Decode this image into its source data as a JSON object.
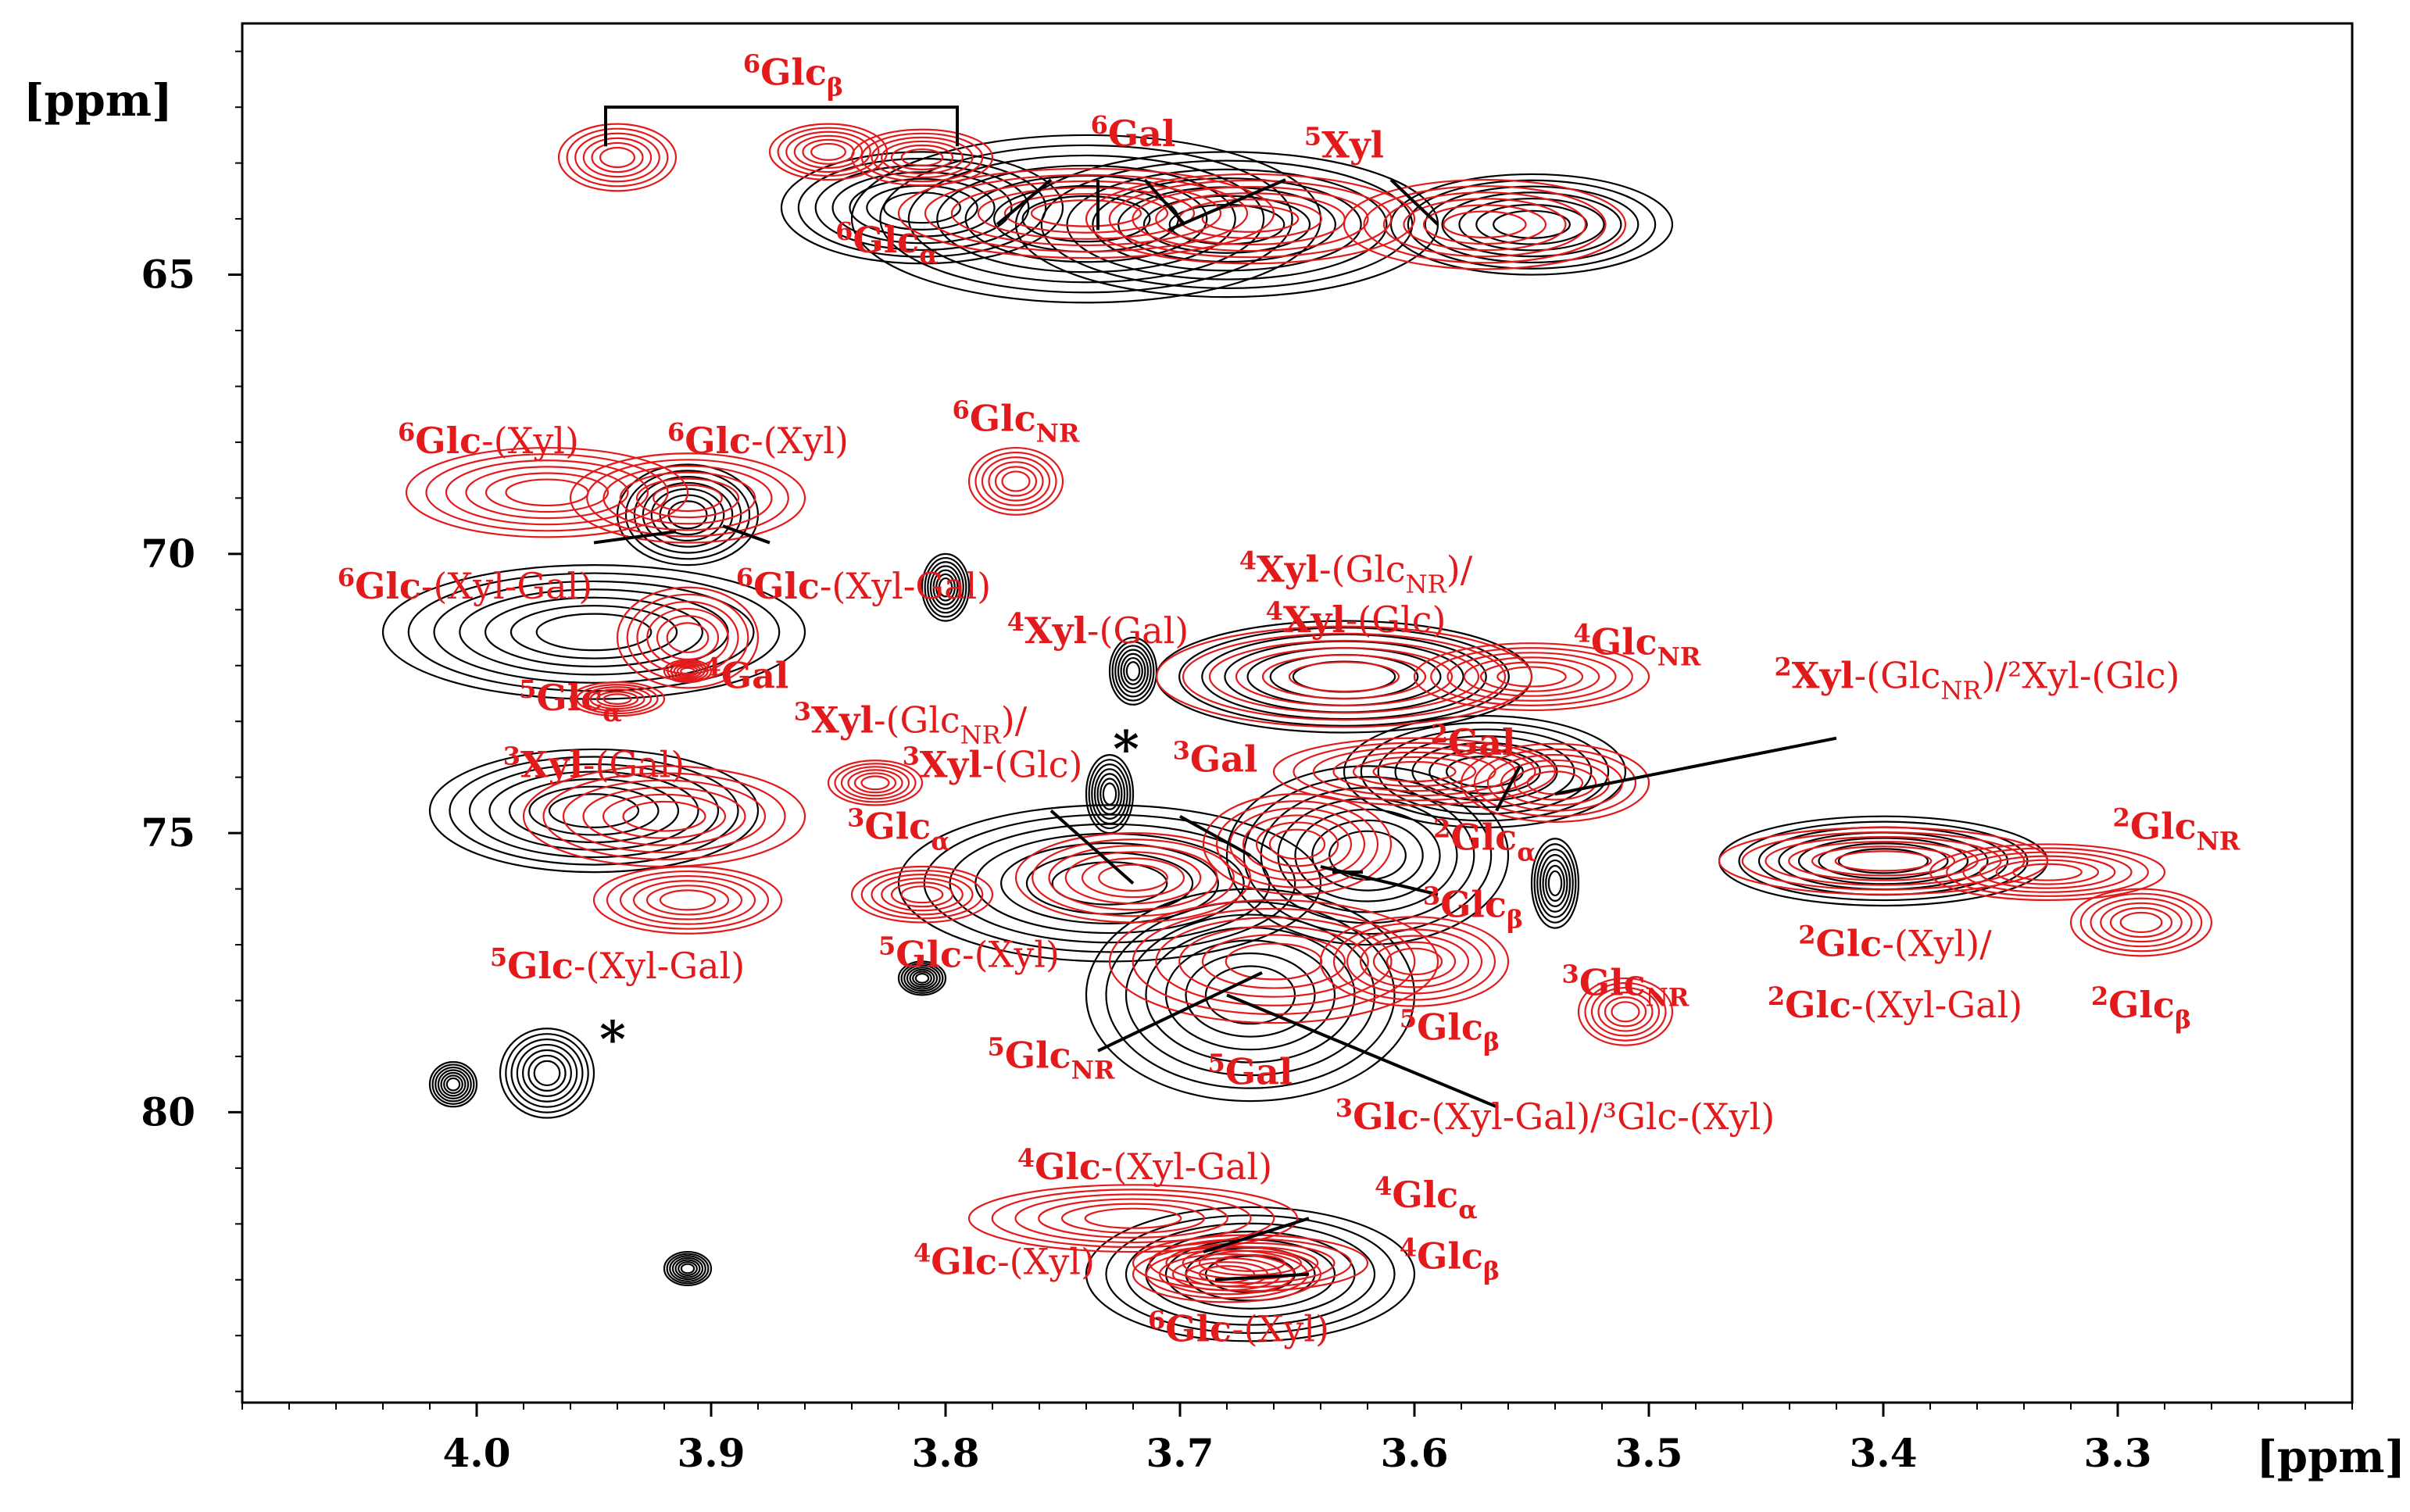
{
  "chart_data": {
    "type": "nmr-2d-hsqc-overlay",
    "x_unit": "[ppm]",
    "y_unit": "[ppm]",
    "xlim": [
      4.1,
      3.2
    ],
    "ylim": [
      60.5,
      85.2
    ],
    "x_ticks": [
      4.0,
      3.9,
      3.8,
      3.7,
      3.6,
      3.5,
      3.4,
      3.3
    ],
    "x_tick_labels": [
      "4.0",
      "3.9",
      "3.8",
      "3.7",
      "3.6",
      "3.5",
      "3.4",
      "3.3"
    ],
    "y_ticks": [
      65,
      70,
      75,
      80
    ],
    "y_tick_labels": [
      "65",
      "70",
      "75",
      "80"
    ],
    "colors": {
      "black_series": "#000000",
      "red_series": "#e31a1c"
    },
    "series_black": [
      {
        "x": 3.81,
        "y": 63.8,
        "w": 0.06,
        "h": 1.0
      },
      {
        "x": 3.74,
        "y": 64.0,
        "w": 0.1,
        "h": 1.5
      },
      {
        "x": 3.68,
        "y": 64.1,
        "w": 0.09,
        "h": 1.3
      },
      {
        "x": 3.55,
        "y": 64.1,
        "w": 0.06,
        "h": 0.9
      },
      {
        "x": 3.95,
        "y": 71.4,
        "w": 0.09,
        "h": 1.2
      },
      {
        "x": 3.91,
        "y": 69.3,
        "w": 0.03,
        "h": 0.9
      },
      {
        "x": 3.95,
        "y": 74.6,
        "w": 0.07,
        "h": 1.1
      },
      {
        "x": 3.73,
        "y": 75.9,
        "w": 0.09,
        "h": 1.4
      },
      {
        "x": 3.62,
        "y": 75.4,
        "w": 0.06,
        "h": 1.6
      },
      {
        "x": 3.67,
        "y": 77.9,
        "w": 0.07,
        "h": 1.9
      },
      {
        "x": 3.63,
        "y": 72.2,
        "w": 0.08,
        "h": 1.0
      },
      {
        "x": 3.57,
        "y": 73.9,
        "w": 0.06,
        "h": 1.0
      },
      {
        "x": 3.4,
        "y": 75.5,
        "w": 0.07,
        "h": 0.8
      },
      {
        "x": 3.67,
        "y": 82.9,
        "w": 0.07,
        "h": 1.2
      },
      {
        "x": 3.72,
        "y": 72.1,
        "w": 0.01,
        "h": 0.6
      },
      {
        "x": 3.73,
        "y": 74.3,
        "w": 0.01,
        "h": 0.7
      },
      {
        "x": 3.54,
        "y": 75.9,
        "w": 0.01,
        "h": 0.8
      },
      {
        "x": 3.97,
        "y": 79.3,
        "w": 0.02,
        "h": 0.8
      },
      {
        "x": 4.01,
        "y": 79.5,
        "w": 0.01,
        "h": 0.4
      },
      {
        "x": 3.8,
        "y": 70.6,
        "w": 0.01,
        "h": 0.6
      },
      {
        "x": 3.91,
        "y": 82.8,
        "w": 0.01,
        "h": 0.3
      },
      {
        "x": 3.81,
        "y": 77.6,
        "w": 0.01,
        "h": 0.3
      }
    ],
    "series_red": [
      {
        "x": 3.94,
        "y": 62.9,
        "w": 0.025,
        "h": 0.6
      },
      {
        "x": 3.85,
        "y": 62.8,
        "w": 0.025,
        "h": 0.5
      },
      {
        "x": 3.81,
        "y": 62.9,
        "w": 0.03,
        "h": 0.5
      },
      {
        "x": 3.74,
        "y": 63.9,
        "w": 0.08,
        "h": 0.8
      },
      {
        "x": 3.67,
        "y": 64.0,
        "w": 0.07,
        "h": 0.8
      },
      {
        "x": 3.57,
        "y": 64.1,
        "w": 0.06,
        "h": 0.8
      },
      {
        "x": 3.97,
        "y": 68.9,
        "w": 0.06,
        "h": 0.8
      },
      {
        "x": 3.91,
        "y": 69.0,
        "w": 0.05,
        "h": 0.8
      },
      {
        "x": 3.77,
        "y": 68.7,
        "w": 0.02,
        "h": 0.6
      },
      {
        "x": 3.91,
        "y": 71.5,
        "w": 0.03,
        "h": 0.9
      },
      {
        "x": 3.91,
        "y": 72.1,
        "w": 0.01,
        "h": 0.2
      },
      {
        "x": 3.94,
        "y": 72.6,
        "w": 0.02,
        "h": 0.3
      },
      {
        "x": 3.92,
        "y": 74.7,
        "w": 0.06,
        "h": 0.9
      },
      {
        "x": 3.91,
        "y": 76.2,
        "w": 0.04,
        "h": 0.6
      },
      {
        "x": 3.83,
        "y": 74.1,
        "w": 0.02,
        "h": 0.4
      },
      {
        "x": 3.81,
        "y": 76.1,
        "w": 0.03,
        "h": 0.5
      },
      {
        "x": 3.72,
        "y": 75.8,
        "w": 0.05,
        "h": 0.8
      },
      {
        "x": 3.63,
        "y": 72.2,
        "w": 0.08,
        "h": 0.9
      },
      {
        "x": 3.55,
        "y": 72.2,
        "w": 0.05,
        "h": 0.6
      },
      {
        "x": 3.6,
        "y": 73.9,
        "w": 0.06,
        "h": 0.6
      },
      {
        "x": 3.54,
        "y": 74.1,
        "w": 0.04,
        "h": 0.7
      },
      {
        "x": 3.65,
        "y": 75.2,
        "w": 0.04,
        "h": 0.9
      },
      {
        "x": 3.66,
        "y": 77.3,
        "w": 0.07,
        "h": 1.1
      },
      {
        "x": 3.6,
        "y": 77.3,
        "w": 0.04,
        "h": 0.8
      },
      {
        "x": 3.51,
        "y": 78.2,
        "w": 0.02,
        "h": 0.6
      },
      {
        "x": 3.4,
        "y": 75.5,
        "w": 0.07,
        "h": 0.6
      },
      {
        "x": 3.33,
        "y": 75.7,
        "w": 0.05,
        "h": 0.5
      },
      {
        "x": 3.29,
        "y": 76.6,
        "w": 0.03,
        "h": 0.6
      },
      {
        "x": 3.72,
        "y": 81.9,
        "w": 0.07,
        "h": 0.6
      },
      {
        "x": 3.67,
        "y": 82.7,
        "w": 0.05,
        "h": 0.5
      },
      {
        "x": 3.68,
        "y": 82.9,
        "w": 0.04,
        "h": 0.5
      }
    ],
    "labels": [
      {
        "id": "lbl-6glcb",
        "x": 3.865,
        "y": 61.6,
        "sup": "6",
        "base": "Glc",
        "sub": "β",
        "rest": ""
      },
      {
        "id": "lbl-6gal",
        "x": 3.72,
        "y": 62.7,
        "sup": "6",
        "base": "Gal",
        "sub": "",
        "rest": ""
      },
      {
        "id": "lbl-5xyl",
        "x": 3.63,
        "y": 62.9,
        "sup": "5",
        "base": "Xyl",
        "sub": "",
        "rest": ""
      },
      {
        "id": "lbl-6glca",
        "x": 3.825,
        "y": 64.6,
        "sup": "6",
        "base": "Glc",
        "sub": "α",
        "rest": ""
      },
      {
        "id": "lbl-6glc-xyl-a",
        "x": 3.995,
        "y": 68.2,
        "sup": "6",
        "base": "Glc",
        "sub": "",
        "rest": "-(Xyl)"
      },
      {
        "id": "lbl-6glc-xyl-b",
        "x": 3.88,
        "y": 68.2,
        "sup": "6",
        "base": "Glc",
        "sub": "",
        "rest": "-(Xyl)"
      },
      {
        "id": "lbl-6glcnr",
        "x": 3.77,
        "y": 67.8,
        "sup": "6",
        "base": "Glc",
        "sub": "NR",
        "rest": ""
      },
      {
        "id": "lbl-6glc-xylgal-a",
        "x": 4.005,
        "y": 70.8,
        "sup": "6",
        "base": "Glc",
        "sub": "",
        "rest": "-(Xyl-Gal)"
      },
      {
        "id": "lbl-6glc-xylgal-b",
        "x": 3.835,
        "y": 70.8,
        "sup": "6",
        "base": "Glc",
        "sub": "",
        "rest": "-(Xyl-Gal)"
      },
      {
        "id": "lbl-4xyl-glcnr",
        "x": 3.625,
        "y": 70.5,
        "sup": "4",
        "base": "Xyl",
        "sub": "",
        "rest": "-(Glc|NR|)/"
      },
      {
        "id": "lbl-4xyl-glc",
        "x": 3.625,
        "y": 71.4,
        "sup": "4",
        "base": "Xyl",
        "sub": "",
        "rest": "-(Glc)"
      },
      {
        "id": "lbl-4xyl-gal",
        "x": 3.735,
        "y": 71.6,
        "sup": "4",
        "base": "Xyl",
        "sub": "",
        "rest": "-(Gal)"
      },
      {
        "id": "lbl-4glcnr",
        "x": 3.505,
        "y": 71.8,
        "sup": "4",
        "base": "Glc",
        "sub": "NR",
        "rest": ""
      },
      {
        "id": "lbl-2xyl",
        "x": 3.36,
        "y": 72.4,
        "sup": "2",
        "base": "Xyl",
        "sub": "",
        "rest": "-(Glc|NR|)/²Xyl-(Glc)"
      },
      {
        "id": "lbl-5glca",
        "x": 3.96,
        "y": 72.8,
        "sup": "5",
        "base": "Glc",
        "sub": "α",
        "rest": ""
      },
      {
        "id": "lbl-4gal",
        "x": 3.885,
        "y": 72.4,
        "sup": "4",
        "base": "Gal",
        "sub": "",
        "rest": ""
      },
      {
        "id": "lbl-3xyl-glcnr",
        "x": 3.815,
        "y": 73.2,
        "sup": "3",
        "base": "Xyl",
        "sub": "",
        "rest": "-(Glc|NR|)/"
      },
      {
        "id": "lbl-3xyl-glc",
        "x": 3.78,
        "y": 74.0,
        "sup": "3",
        "base": "Xyl",
        "sub": "",
        "rest": "-(Glc)"
      },
      {
        "id": "lbl-2gal",
        "x": 3.575,
        "y": 73.6,
        "sup": "2",
        "base": "Gal",
        "sub": "",
        "rest": ""
      },
      {
        "id": "lbl-3gal",
        "x": 3.685,
        "y": 73.9,
        "sup": "3",
        "base": "Gal",
        "sub": "",
        "rest": ""
      },
      {
        "id": "lbl-3xyl-gal",
        "x": 3.95,
        "y": 74.0,
        "sup": "3",
        "base": "Xyl",
        "sub": "",
        "rest": "-(Gal)"
      },
      {
        "id": "lbl-3glca",
        "x": 3.82,
        "y": 75.1,
        "sup": "3",
        "base": "Glc",
        "sub": "α",
        "rest": ""
      },
      {
        "id": "lbl-2glca",
        "x": 3.57,
        "y": 75.3,
        "sup": "2",
        "base": "Glc",
        "sub": "α",
        "rest": ""
      },
      {
        "id": "lbl-2glcnr",
        "x": 3.275,
        "y": 75.1,
        "sup": "2",
        "base": "Glc",
        "sub": "NR",
        "rest": ""
      },
      {
        "id": "lbl-3glcb",
        "x": 3.575,
        "y": 76.5,
        "sup": "3",
        "base": "Glc",
        "sub": "β",
        "rest": ""
      },
      {
        "id": "lbl-5glc-xylgal",
        "x": 3.94,
        "y": 77.6,
        "sup": "5",
        "base": "Glc",
        "sub": "",
        "rest": "-(Xyl-Gal)"
      },
      {
        "id": "lbl-5glc-xyl",
        "x": 3.79,
        "y": 77.4,
        "sup": "5",
        "base": "Glc",
        "sub": "",
        "rest": "-(Xyl)"
      },
      {
        "id": "lbl-2glc-xyl",
        "x": 3.395,
        "y": 77.2,
        "sup": "2",
        "base": "Glc",
        "sub": "",
        "rest": "-(Xyl)/"
      },
      {
        "id": "lbl-2glc-xylgal",
        "x": 3.395,
        "y": 78.3,
        "sup": "2",
        "base": "Glc",
        "sub": "",
        "rest": "-(Xyl-Gal)"
      },
      {
        "id": "lbl-2glcb",
        "x": 3.29,
        "y": 78.3,
        "sup": "2",
        "base": "Glc",
        "sub": "β",
        "rest": ""
      },
      {
        "id": "lbl-3glcnr",
        "x": 3.51,
        "y": 77.9,
        "sup": "3",
        "base": "Glc",
        "sub": "NR",
        "rest": ""
      },
      {
        "id": "lbl-5glcb",
        "x": 3.585,
        "y": 78.7,
        "sup": "5",
        "base": "Glc",
        "sub": "β",
        "rest": ""
      },
      {
        "id": "lbl-5glcnr",
        "x": 3.755,
        "y": 79.2,
        "sup": "5",
        "base": "Glc",
        "sub": "NR",
        "rest": ""
      },
      {
        "id": "lbl-5gal",
        "x": 3.67,
        "y": 79.5,
        "sup": "5",
        "base": "Gal",
        "sub": "",
        "rest": ""
      },
      {
        "id": "lbl-3glc-xylgal",
        "x": 3.54,
        "y": 80.3,
        "sup": "3",
        "base": "Glc",
        "sub": "",
        "rest": "-(Xyl-Gal)/³Glc-(Xyl)"
      },
      {
        "id": "lbl-4glc-xylgal",
        "x": 3.715,
        "y": 81.2,
        "sup": "4",
        "base": "Glc",
        "sub": "",
        "rest": "-(Xyl-Gal)"
      },
      {
        "id": "lbl-4glca",
        "x": 3.595,
        "y": 81.7,
        "sup": "4",
        "base": "Glc",
        "sub": "α",
        "rest": ""
      },
      {
        "id": "lbl-4glcb",
        "x": 3.585,
        "y": 82.8,
        "sup": "4",
        "base": "Glc",
        "sub": "β",
        "rest": ""
      },
      {
        "id": "lbl-4glc-xyl",
        "x": 3.775,
        "y": 82.9,
        "sup": "4",
        "base": "Glc",
        "sub": "",
        "rest": "-(Xyl)"
      },
      {
        "id": "lbl-6glc-xyl-c",
        "x": 3.675,
        "y": 84.1,
        "sup": "6",
        "base": "Glc",
        "sub": "",
        "rest": "-(Xyl)"
      }
    ],
    "asterisks": [
      {
        "x": 3.723,
        "y": 73.8,
        "text": "*"
      },
      {
        "x": 3.942,
        "y": 79.0,
        "text": "*"
      }
    ],
    "leaders": [
      [
        3.755,
        63.3,
        3.778,
        64.1
      ],
      [
        3.735,
        63.3,
        3.735,
        64.2
      ],
      [
        3.715,
        63.3,
        3.698,
        64.1
      ],
      [
        3.655,
        63.3,
        3.705,
        64.2
      ],
      [
        3.61,
        63.3,
        3.59,
        64.1
      ],
      [
        3.95,
        69.8,
        3.915,
        69.6
      ],
      [
        3.875,
        69.8,
        3.895,
        69.5
      ],
      [
        3.755,
        74.6,
        3.72,
        75.9
      ],
      [
        3.7,
        74.7,
        3.67,
        75.4
      ],
      [
        3.635,
        75.7,
        3.622,
        75.7
      ],
      [
        3.59,
        76.1,
        3.64,
        75.6
      ],
      [
        3.555,
        73.8,
        3.565,
        74.6
      ],
      [
        3.42,
        73.3,
        3.54,
        74.3
      ],
      [
        3.735,
        78.9,
        3.665,
        77.5
      ],
      [
        3.565,
        79.9,
        3.68,
        77.9
      ],
      [
        3.645,
        81.9,
        3.69,
        82.5
      ],
      [
        3.645,
        82.9,
        3.685,
        83.0
      ]
    ],
    "bracket": {
      "x1": 3.945,
      "x2": 3.795,
      "y_top": 62.0,
      "y_bottom": 62.7
    }
  }
}
